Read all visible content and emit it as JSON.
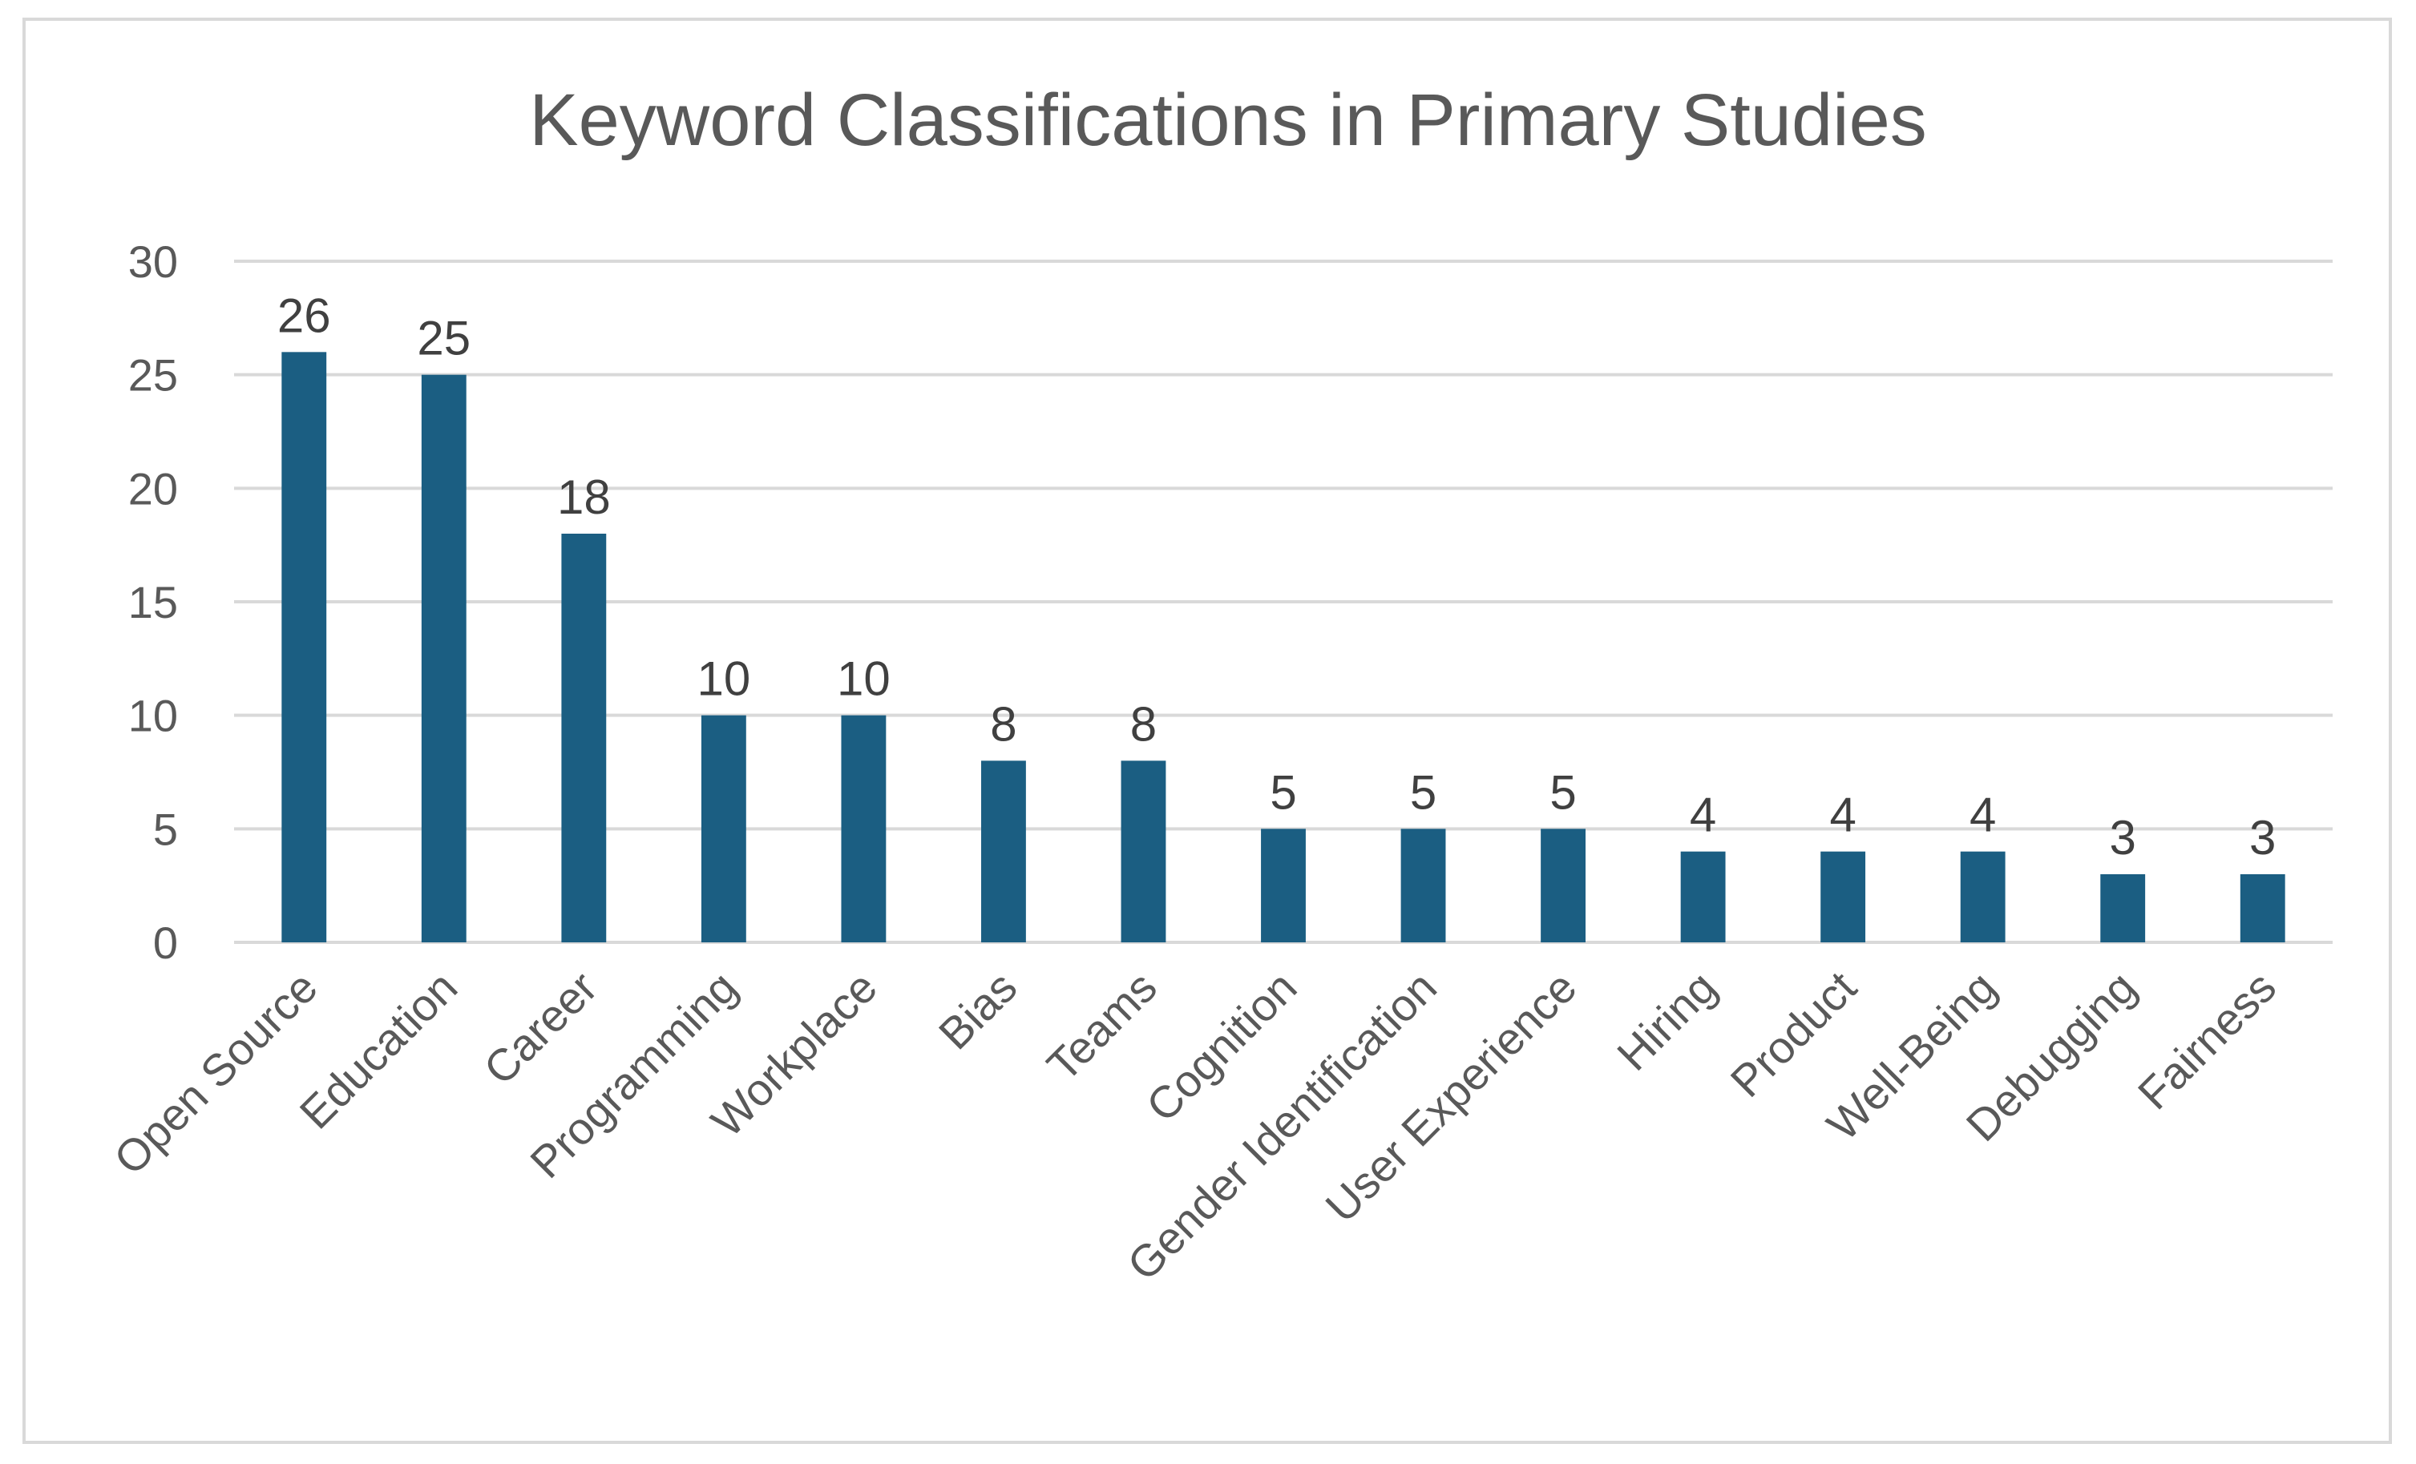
{
  "chart_data": {
    "type": "bar",
    "title": "Keyword Classifications in Primary Studies",
    "xlabel": "",
    "ylabel": "",
    "categories": [
      "Open Source",
      "Education",
      "Career",
      "Programming",
      "Workplace",
      "Bias",
      "Teams",
      "Cognition",
      "Gender Identification",
      "User Experience",
      "Hiring",
      "Product",
      "Well-Being",
      "Debugging",
      "Fairness"
    ],
    "values": [
      26,
      25,
      18,
      10,
      10,
      8,
      8,
      5,
      5,
      5,
      4,
      4,
      4,
      3,
      3
    ],
    "ylim": [
      0,
      30
    ],
    "yticks": [
      0,
      5,
      10,
      15,
      20,
      25,
      30
    ],
    "grid": true,
    "legend": "none",
    "data_labels": true,
    "bar_color": "#1b5e82",
    "grid_color": "#d9d9d9"
  }
}
